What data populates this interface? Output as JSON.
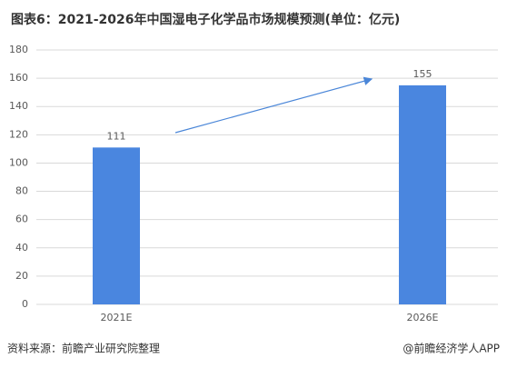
{
  "chart_data": {
    "type": "bar",
    "title": "图表6：2021-2026年中国湿电子化学品市场规模预测(单位：亿元)",
    "categories": [
      "2021E",
      "2026E"
    ],
    "values": [
      111,
      155
    ],
    "color": "#4a86df",
    "ylim": [
      0,
      180
    ],
    "yticks": [
      0,
      20,
      40,
      60,
      80,
      100,
      120,
      140,
      160,
      180
    ],
    "grid": true,
    "source": "资料来源：前瞻产业研究院整理",
    "credit": "@前瞻经济学人APP"
  }
}
